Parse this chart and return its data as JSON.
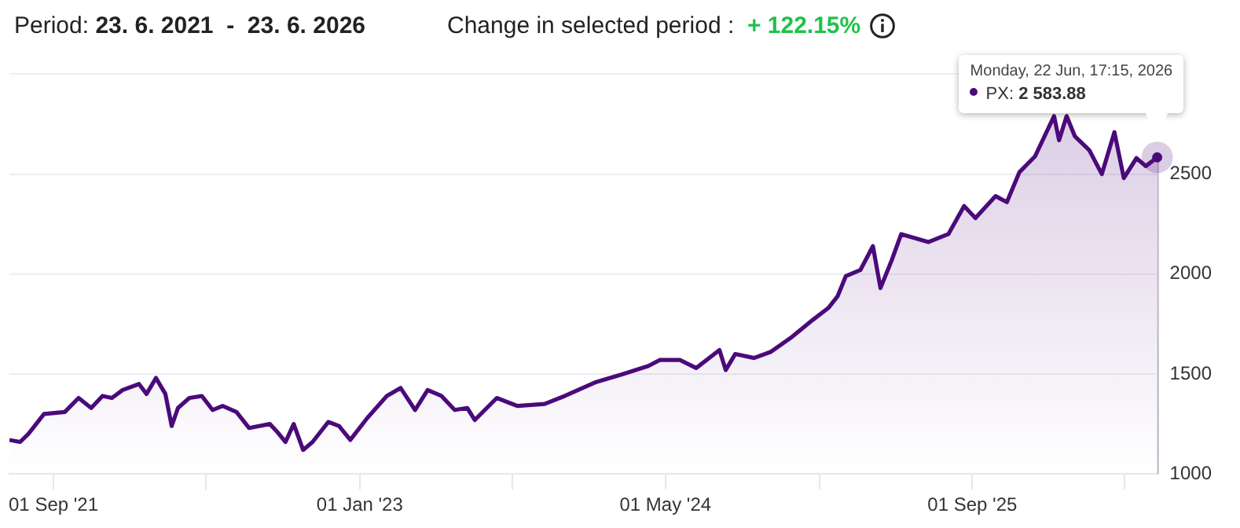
{
  "chart_data": {
    "type": "area",
    "title": "Period: 23. 6. 2021  -  23. 6. 2026",
    "subtitle": "Change in selected period :  + 122.15%",
    "annotations": [
      "Monday, 22 Jun, 17:15, 2026",
      "PX: 2 583.88"
    ],
    "xlim": [
      "2021-06-23",
      "2026-06-22"
    ],
    "xticks": [
      {
        "value": "2021-09-01",
        "label": "01 Sep '21"
      },
      {
        "value": "2022-05-01",
        "label": null
      },
      {
        "value": "2023-01-01",
        "label": "01 Jan '23"
      },
      {
        "value": "2023-09-01",
        "label": null
      },
      {
        "value": "2024-05-01",
        "label": "01 May '24"
      },
      {
        "value": "2025-01-01",
        "label": null
      },
      {
        "value": "2025-09-01",
        "label": "01 Sep '25"
      },
      {
        "value": "2026-05-01",
        "label": null
      }
    ],
    "ylim": [
      1000,
      3000
    ],
    "yticks": [
      1000,
      1500,
      2000,
      2500,
      {
        "value": 3000,
        "label": null
      }
    ],
    "grid": "y",
    "legend": false,
    "marker": "none",
    "series": [
      {
        "color": "#4b0a7a",
        "x": [
          "2021-06-23",
          "2021-07-10",
          "2021-07-23",
          "2021-08-17",
          "2021-09-19",
          "2021-10-11",
          "2021-10-31",
          "2021-11-18",
          "2021-12-03",
          "2021-12-20",
          "2022-01-15",
          "2022-01-27",
          "2022-02-11",
          "2022-02-26",
          "2022-03-08",
          "2022-03-18",
          "2022-04-05",
          "2022-04-25",
          "2022-05-12",
          "2022-05-28",
          "2022-06-19",
          "2022-07-09",
          "2022-08-11",
          "2022-08-23",
          "2022-09-05",
          "2022-09-18",
          "2022-10-03",
          "2022-10-18",
          "2022-11-12",
          "2022-11-29",
          "2022-12-17",
          "2023-01-13",
          "2023-02-13",
          "2023-03-07",
          "2023-03-30",
          "2023-04-19",
          "2023-05-11",
          "2023-06-01",
          "2023-06-21",
          "2023-07-03",
          "2023-08-07",
          "2023-09-09",
          "2023-10-22",
          "2023-11-23",
          "2024-01-12",
          "2024-02-24",
          "2024-04-04",
          "2024-04-22",
          "2024-05-24",
          "2024-06-19",
          "2024-07-26",
          "2024-08-05",
          "2024-08-20",
          "2024-09-19",
          "2024-10-15",
          "2024-11-16",
          "2024-12-21",
          "2025-01-15",
          "2025-01-30",
          "2025-02-12",
          "2025-03-07",
          "2025-03-27",
          "2025-04-08",
          "2025-04-26",
          "2025-05-11",
          "2025-06-23",
          "2025-07-25",
          "2025-08-19",
          "2025-09-06",
          "2025-10-08",
          "2025-10-26",
          "2025-11-15",
          "2025-12-10",
          "2025-12-28",
          "2026-01-09",
          "2026-01-17",
          "2026-01-29",
          "2026-02-11",
          "2026-03-06",
          "2026-03-26",
          "2026-04-15",
          "2026-04-30",
          "2026-05-20",
          "2026-06-04",
          "2026-06-22"
        ],
        "values": [
          1170,
          1160,
          1200,
          1300,
          1310,
          1380,
          1330,
          1390,
          1380,
          1420,
          1450,
          1400,
          1480,
          1400,
          1240,
          1330,
          1380,
          1390,
          1320,
          1340,
          1310,
          1230,
          1250,
          1210,
          1160,
          1250,
          1120,
          1160,
          1260,
          1240,
          1170,
          1280,
          1390,
          1430,
          1320,
          1420,
          1390,
          1320,
          1330,
          1270,
          1380,
          1340,
          1350,
          1390,
          1460,
          1500,
          1540,
          1570,
          1570,
          1530,
          1620,
          1520,
          1600,
          1580,
          1610,
          1680,
          1770,
          1830,
          1890,
          1990,
          2020,
          2140,
          1930,
          2070,
          2200,
          2160,
          2200,
          2340,
          2280,
          2390,
          2360,
          2510,
          2590,
          2710,
          2790,
          2670,
          2790,
          2690,
          2620,
          2500,
          2710,
          2480,
          2580,
          2540,
          2583.88
        ]
      }
    ]
  }
}
